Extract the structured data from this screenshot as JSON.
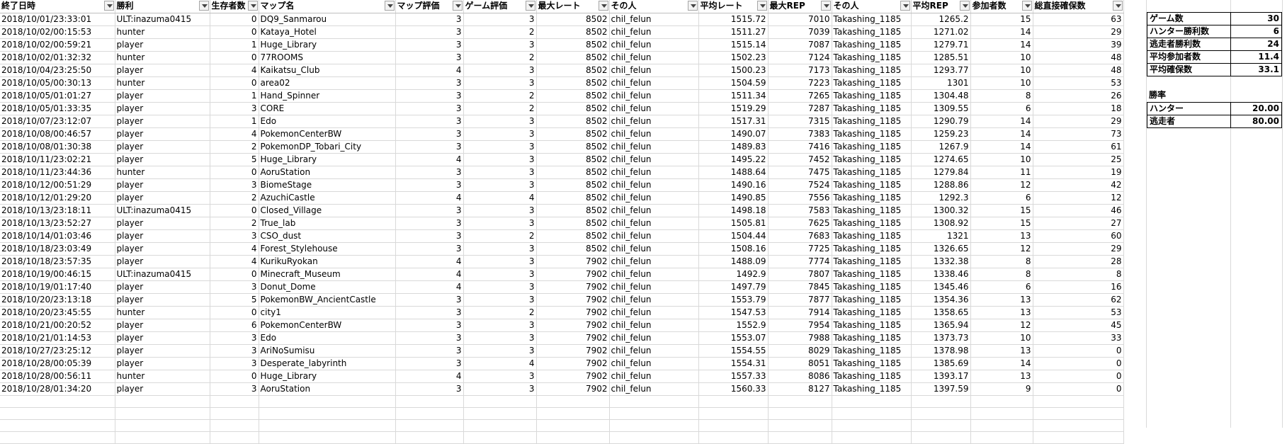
{
  "spreadsheet": {
    "headers": [
      "終了日時",
      "勝利",
      "生存者数",
      "マップ名",
      "マップ評価",
      "ゲーム評価",
      "最大レート",
      "その人",
      "平均レート",
      "最大REP",
      "その人",
      "平均REP",
      "参加者数",
      "総直接確保数"
    ],
    "rows": [
      [
        "2018/10/01/23:33:01",
        "ULT:inazuma0415",
        "0",
        "DQ9_Sanmarou",
        "3",
        "3",
        "8502",
        "chil_felun",
        "1515.72",
        "7010",
        "Takashing_1185",
        "1265.2",
        "15",
        "63"
      ],
      [
        "2018/10/02/00:15:53",
        "hunter",
        "0",
        "Kataya_Hotel",
        "3",
        "2",
        "8502",
        "chil_felun",
        "1511.27",
        "7039",
        "Takashing_1185",
        "1271.02",
        "14",
        "29"
      ],
      [
        "2018/10/02/00:59:21",
        "player",
        "1",
        "Huge_Library",
        "3",
        "3",
        "8502",
        "chil_felun",
        "1515.14",
        "7087",
        "Takashing_1185",
        "1279.71",
        "14",
        "39"
      ],
      [
        "2018/10/02/01:32:32",
        "hunter",
        "0",
        "77ROOMS",
        "3",
        "2",
        "8502",
        "chil_felun",
        "1502.23",
        "7124",
        "Takashing_1185",
        "1285.51",
        "10",
        "48"
      ],
      [
        "2018/10/04/23:25:50",
        "player",
        "4",
        "Kaikatsu_Club",
        "4",
        "3",
        "8502",
        "chil_felun",
        "1500.23",
        "7173",
        "Takashing_1185",
        "1293.77",
        "10",
        "48"
      ],
      [
        "2018/10/05/00:30:13",
        "hunter",
        "0",
        "area02",
        "3",
        "3",
        "8502",
        "chil_felun",
        "1504.59",
        "7223",
        "Takashing_1185",
        "1301",
        "10",
        "53"
      ],
      [
        "2018/10/05/01:01:27",
        "player",
        "1",
        "Hand_Spinner",
        "3",
        "2",
        "8502",
        "chil_felun",
        "1511.34",
        "7265",
        "Takashing_1185",
        "1304.48",
        "8",
        "26"
      ],
      [
        "2018/10/05/01:33:35",
        "player",
        "3",
        "CORE",
        "3",
        "2",
        "8502",
        "chil_felun",
        "1519.29",
        "7287",
        "Takashing_1185",
        "1309.55",
        "6",
        "18"
      ],
      [
        "2018/10/07/23:12:07",
        "player",
        "1",
        "Edo",
        "3",
        "3",
        "8502",
        "chil_felun",
        "1517.31",
        "7315",
        "Takashing_1185",
        "1290.79",
        "14",
        "29"
      ],
      [
        "2018/10/08/00:46:57",
        "player",
        "4",
        "PokemonCenterBW",
        "3",
        "3",
        "8502",
        "chil_felun",
        "1490.07",
        "7383",
        "Takashing_1185",
        "1259.23",
        "14",
        "73"
      ],
      [
        "2018/10/08/01:30:38",
        "player",
        "2",
        "PokemonDP_Tobari_City",
        "3",
        "3",
        "8502",
        "chil_felun",
        "1489.83",
        "7416",
        "Takashing_1185",
        "1267.9",
        "14",
        "61"
      ],
      [
        "2018/10/11/23:02:21",
        "player",
        "5",
        "Huge_Library",
        "4",
        "3",
        "8502",
        "chil_felun",
        "1495.22",
        "7452",
        "Takashing_1185",
        "1274.65",
        "10",
        "25"
      ],
      [
        "2018/10/11/23:44:36",
        "hunter",
        "0",
        "AoruStation",
        "3",
        "3",
        "8502",
        "chil_felun",
        "1488.64",
        "7475",
        "Takashing_1185",
        "1279.84",
        "11",
        "19"
      ],
      [
        "2018/10/12/00:51:29",
        "player",
        "3",
        "BiomeStage",
        "3",
        "3",
        "8502",
        "chil_felun",
        "1490.16",
        "7524",
        "Takashing_1185",
        "1288.86",
        "12",
        "42"
      ],
      [
        "2018/10/12/01:29:20",
        "player",
        "2",
        "AzuchiCastle",
        "4",
        "4",
        "8502",
        "chil_felun",
        "1490.85",
        "7556",
        "Takashing_1185",
        "1292.3",
        "6",
        "12"
      ],
      [
        "2018/10/13/23:18:11",
        "ULT:inazuma0415",
        "0",
        "Closed_Village",
        "3",
        "3",
        "8502",
        "chil_felun",
        "1498.18",
        "7583",
        "Takashing_1185",
        "1300.32",
        "15",
        "46"
      ],
      [
        "2018/10/13/23:52:27",
        "player",
        "2",
        "True_lab",
        "3",
        "3",
        "8502",
        "chil_felun",
        "1505.81",
        "7625",
        "Takashing_1185",
        "1308.92",
        "15",
        "27"
      ],
      [
        "2018/10/14/01:03:46",
        "player",
        "3",
        "CSO_dust",
        "3",
        "2",
        "8502",
        "chil_felun",
        "1504.44",
        "7683",
        "Takashing_1185",
        "1321",
        "13",
        "60"
      ],
      [
        "2018/10/18/23:03:49",
        "player",
        "4",
        "Forest_Stylehouse",
        "3",
        "3",
        "8502",
        "chil_felun",
        "1508.16",
        "7725",
        "Takashing_1185",
        "1326.65",
        "12",
        "29"
      ],
      [
        "2018/10/18/23:57:35",
        "player",
        "4",
        "KurikuRyokan",
        "4",
        "3",
        "7902",
        "chil_felun",
        "1488.09",
        "7774",
        "Takashing_1185",
        "1332.38",
        "8",
        "28"
      ],
      [
        "2018/10/19/00:46:15",
        "ULT:inazuma0415",
        "0",
        "Minecraft_Museum",
        "4",
        "3",
        "7902",
        "chil_felun",
        "1492.9",
        "7807",
        "Takashing_1185",
        "1338.46",
        "8",
        "8"
      ],
      [
        "2018/10/19/01:17:40",
        "player",
        "3",
        "Donut_Dome",
        "4",
        "3",
        "7902",
        "chil_felun",
        "1497.79",
        "7845",
        "Takashing_1185",
        "1345.46",
        "6",
        "16"
      ],
      [
        "2018/10/20/23:13:18",
        "player",
        "5",
        "PokemonBW_AncientCastle",
        "3",
        "3",
        "7902",
        "chil_felun",
        "1553.79",
        "7877",
        "Takashing_1185",
        "1354.36",
        "13",
        "62"
      ],
      [
        "2018/10/20/23:45:55",
        "hunter",
        "0",
        "city1",
        "3",
        "2",
        "7902",
        "chil_felun",
        "1547.53",
        "7914",
        "Takashing_1185",
        "1358.65",
        "13",
        "53"
      ],
      [
        "2018/10/21/00:20:52",
        "player",
        "6",
        "PokemonCenterBW",
        "3",
        "3",
        "7902",
        "chil_felun",
        "1552.9",
        "7954",
        "Takashing_1185",
        "1365.94",
        "12",
        "45"
      ],
      [
        "2018/10/21/01:14:53",
        "player",
        "3",
        "Edo",
        "3",
        "3",
        "7902",
        "chil_felun",
        "1553.07",
        "7988",
        "Takashing_1185",
        "1373.73",
        "10",
        "33"
      ],
      [
        "2018/10/27/23:25:12",
        "player",
        "3",
        "AriNoSumisu",
        "3",
        "3",
        "7902",
        "chil_felun",
        "1554.55",
        "8029",
        "Takashing_1185",
        "1378.98",
        "13",
        "0"
      ],
      [
        "2018/10/28/00:05:39",
        "player",
        "3",
        "Desperate_labyrinth",
        "3",
        "4",
        "7902",
        "chil_felun",
        "1554.31",
        "8051",
        "Takashing_1185",
        "1385.69",
        "14",
        "0"
      ],
      [
        "2018/10/28/00:56:11",
        "hunter",
        "0",
        "Huge_Library",
        "4",
        "3",
        "7902",
        "chil_felun",
        "1557.33",
        "8086",
        "Takashing_1185",
        "1393.17",
        "13",
        "0"
      ],
      [
        "2018/10/28/01:34:20",
        "player",
        "3",
        "AoruStation",
        "3",
        "3",
        "7902",
        "chil_felun",
        "1560.33",
        "8127",
        "Takashing_1185",
        "1397.59",
        "9",
        "0"
      ]
    ]
  },
  "stats": {
    "items": [
      {
        "label": "ゲーム数",
        "value": "30"
      },
      {
        "label": "ハンター勝利数",
        "value": "6"
      },
      {
        "label": "逃走者勝利数",
        "value": "24"
      },
      {
        "label": "平均参加者数",
        "value": "11.4"
      },
      {
        "label": "平均確保数",
        "value": "33.1"
      }
    ]
  },
  "winrate": {
    "heading": "勝率",
    "items": [
      {
        "label": "ハンター",
        "value": "20.00"
      },
      {
        "label": "逃走者",
        "value": "80.00"
      }
    ]
  }
}
